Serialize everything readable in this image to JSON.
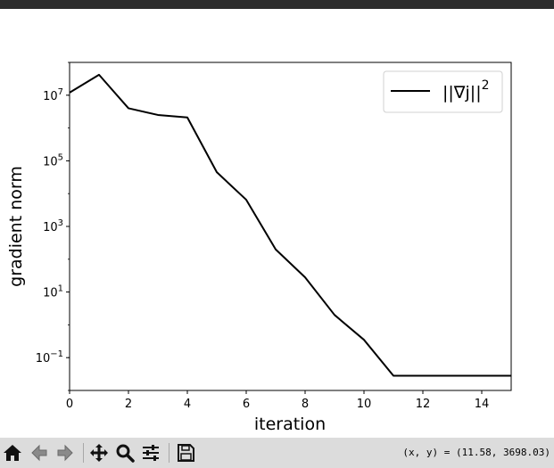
{
  "chart_data": {
    "type": "line",
    "xlabel": "iteration",
    "ylabel": "gradient norm",
    "yscale": "log",
    "xlim": [
      0,
      15
    ],
    "ylim": [
      0.01,
      100000000
    ],
    "x_ticks": [
      0,
      2,
      4,
      6,
      8,
      10,
      12,
      14
    ],
    "x_tick_labels": [
      "0",
      "2",
      "4",
      "6",
      "8",
      "10",
      "12",
      "14"
    ],
    "y_ticks": [
      0.1,
      10,
      1000,
      100000,
      10000000
    ],
    "y_tick_labels": [
      {
        "base": "10",
        "exp": "−1"
      },
      {
        "base": "10",
        "exp": "1"
      },
      {
        "base": "10",
        "exp": "3"
      },
      {
        "base": "10",
        "exp": "5"
      },
      {
        "base": "10",
        "exp": "7"
      }
    ],
    "grid": false,
    "legend_position": "top-right",
    "series": [
      {
        "name_parts": {
          "main": "||∇j||",
          "sup": "2"
        },
        "color": "#000000",
        "x": [
          0,
          1,
          2,
          3,
          4,
          5,
          6,
          7,
          8,
          9,
          10,
          11,
          12,
          13,
          14,
          15
        ],
        "y": [
          12000000,
          42000000,
          4000000,
          2500000,
          2100000,
          45000,
          6500,
          200,
          28,
          2,
          0.35,
          0.028,
          0.028,
          0.028,
          0.028,
          0.028
        ]
      }
    ]
  },
  "toolbar": {
    "buttons": [
      {
        "icon": "home-icon"
      },
      {
        "icon": "back-arrow-icon"
      },
      {
        "icon": "forward-arrow-icon"
      },
      {
        "icon": "pan-icon"
      },
      {
        "icon": "zoom-icon"
      },
      {
        "icon": "configure-subplots-icon"
      },
      {
        "icon": "save-icon"
      }
    ],
    "coords": "(x, y) = (11.58, 3698.03)"
  }
}
